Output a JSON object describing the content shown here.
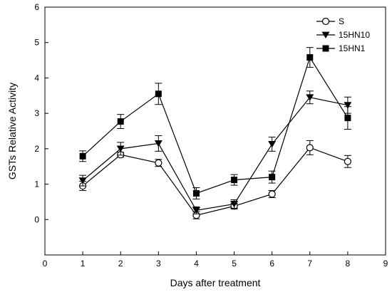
{
  "chart_data": {
    "type": "line",
    "title": "",
    "xlabel": "Days after treatment",
    "ylabel": "GSTs Relative Activity",
    "xlim": [
      0,
      9
    ],
    "ylim": [
      -1,
      6
    ],
    "xticks": [
      0,
      1,
      2,
      3,
      4,
      5,
      6,
      7,
      8,
      9
    ],
    "yticks": [
      0,
      1,
      2,
      3,
      4,
      5,
      6
    ],
    "grid": false,
    "legend_position": "top-right",
    "x": [
      1,
      2,
      3,
      4,
      5,
      6,
      7,
      8
    ],
    "series": [
      {
        "name": "S",
        "marker": "open-circle",
        "values": [
          0.95,
          1.83,
          1.6,
          0.12,
          0.38,
          0.72,
          2.03,
          1.64
        ],
        "errors": [
          0.13,
          0.07,
          0.1,
          0.1,
          0.08,
          0.1,
          0.2,
          0.17
        ]
      },
      {
        "name": "15HN10",
        "marker": "filled-triangle-down",
        "values": [
          1.1,
          2.0,
          2.15,
          0.26,
          0.44,
          2.13,
          3.45,
          3.23
        ],
        "errors": [
          0.15,
          0.18,
          0.22,
          0.1,
          0.12,
          0.2,
          0.18,
          0.23
        ]
      },
      {
        "name": "15HN1",
        "marker": "filled-square",
        "values": [
          1.79,
          2.77,
          3.55,
          0.74,
          1.12,
          1.2,
          4.58,
          2.87
        ],
        "errors": [
          0.15,
          0.2,
          0.3,
          0.16,
          0.15,
          0.17,
          0.28,
          0.32
        ]
      }
    ]
  }
}
